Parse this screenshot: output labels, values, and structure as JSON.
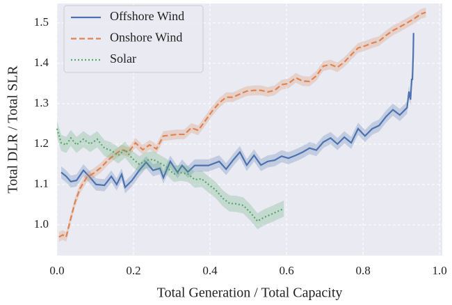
{
  "chart_data": {
    "type": "line",
    "xlabel": "Total Generation / Total Capacity",
    "ylabel": "Total DLR / Total SLR",
    "xlim": [
      0,
      1.007
    ],
    "ylim": [
      0.924,
      1.548
    ],
    "xticks": [
      {
        "value": 0,
        "label": "0.0"
      },
      0.2,
      0.4,
      0.6,
      0.8,
      {
        "value": 1,
        "label": "1.0"
      }
    ],
    "yticks": [
      {
        "value": 1,
        "label": "1.0"
      },
      1.1,
      1.2,
      1.3,
      1.4,
      1.5
    ],
    "grid": true,
    "legend": "upper left",
    "series": [
      {
        "name": "Offshore Wind",
        "color": "#4c72b0",
        "dash": "solid",
        "ci": 0.015,
        "x": [
          0.011,
          0.024,
          0.036,
          0.051,
          0.069,
          0.084,
          0.102,
          0.124,
          0.142,
          0.156,
          0.169,
          0.178,
          0.196,
          0.215,
          0.233,
          0.251,
          0.269,
          0.278,
          0.296,
          0.315,
          0.327,
          0.342,
          0.36,
          0.396,
          0.424,
          0.442,
          0.46,
          0.478,
          0.496,
          0.515,
          0.533,
          0.551,
          0.569,
          0.587,
          0.605,
          0.624,
          0.642,
          0.66,
          0.678,
          0.696,
          0.715,
          0.733,
          0.751,
          0.769,
          0.787,
          0.805,
          0.824,
          0.842,
          0.86,
          0.878,
          0.896,
          0.915,
          0.92,
          0.924,
          0.927,
          0.929,
          0.931,
          0.932
        ],
        "values": [
          1.13,
          1.12,
          1.107,
          1.11,
          1.135,
          1.12,
          1.1,
          1.098,
          1.12,
          1.1,
          1.125,
          1.093,
          1.11,
          1.135,
          1.155,
          1.135,
          1.14,
          1.117,
          1.157,
          1.13,
          1.147,
          1.131,
          1.147,
          1.147,
          1.157,
          1.138,
          1.16,
          1.18,
          1.148,
          1.172,
          1.148,
          1.157,
          1.16,
          1.17,
          1.165,
          1.172,
          1.18,
          1.19,
          1.185,
          1.205,
          1.215,
          1.2,
          1.217,
          1.203,
          1.238,
          1.22,
          1.238,
          1.246,
          1.268,
          1.285,
          1.272,
          1.29,
          1.33,
          1.31,
          1.36,
          1.36,
          1.42,
          1.475
        ]
      },
      {
        "name": "Onshore Wind",
        "color": "#dd8452",
        "dash": "dashed",
        "ci": 0.012,
        "x": [
          0.005,
          0.015,
          0.024,
          0.033,
          0.047,
          0.06,
          0.078,
          0.096,
          0.115,
          0.133,
          0.151,
          0.169,
          0.187,
          0.205,
          0.224,
          0.242,
          0.26,
          0.278,
          0.296,
          0.315,
          0.333,
          0.351,
          0.369,
          0.387,
          0.405,
          0.424,
          0.442,
          0.46,
          0.478,
          0.496,
          0.515,
          0.533,
          0.551,
          0.569,
          0.587,
          0.605,
          0.624,
          0.642,
          0.66,
          0.678,
          0.696,
          0.715,
          0.733,
          0.751,
          0.769,
          0.787,
          0.805,
          0.824,
          0.842,
          0.86,
          0.878,
          0.896,
          0.915,
          0.933,
          0.951,
          0.964
        ],
        "values": [
          0.97,
          0.975,
          0.97,
          1.005,
          1.056,
          1.09,
          1.118,
          1.128,
          1.142,
          1.16,
          1.174,
          1.186,
          1.18,
          1.203,
          1.186,
          1.198,
          1.188,
          1.22,
          1.222,
          1.224,
          1.224,
          1.24,
          1.234,
          1.257,
          1.281,
          1.302,
          1.316,
          1.316,
          1.324,
          1.331,
          1.333,
          1.333,
          1.329,
          1.333,
          1.347,
          1.35,
          1.364,
          1.356,
          1.355,
          1.369,
          1.393,
          1.397,
          1.39,
          1.403,
          1.421,
          1.438,
          1.443,
          1.45,
          1.455,
          1.469,
          1.481,
          1.49,
          1.5,
          1.51,
          1.522,
          1.526
        ]
      },
      {
        "name": "Solar",
        "color": "#55a868",
        "dash": "dotted",
        "ci": 0.02,
        "x": [
          0.0,
          0.011,
          0.024,
          0.036,
          0.051,
          0.069,
          0.087,
          0.105,
          0.124,
          0.142,
          0.16,
          0.178,
          0.196,
          0.215,
          0.233,
          0.251,
          0.269,
          0.287,
          0.305,
          0.324,
          0.342,
          0.36,
          0.378,
          0.396,
          0.415,
          0.433,
          0.451,
          0.469,
          0.487,
          0.505,
          0.524,
          0.542,
          0.56,
          0.578,
          0.593
        ],
        "values": [
          1.238,
          1.203,
          1.198,
          1.215,
          1.198,
          1.212,
          1.2,
          1.212,
          1.19,
          1.184,
          1.172,
          1.186,
          1.165,
          1.15,
          1.16,
          1.162,
          1.153,
          1.143,
          1.126,
          1.129,
          1.126,
          1.112,
          1.114,
          1.1,
          1.086,
          1.066,
          1.053,
          1.052,
          1.048,
          1.031,
          1.009,
          1.019,
          1.026,
          1.034,
          1.04
        ]
      }
    ]
  }
}
